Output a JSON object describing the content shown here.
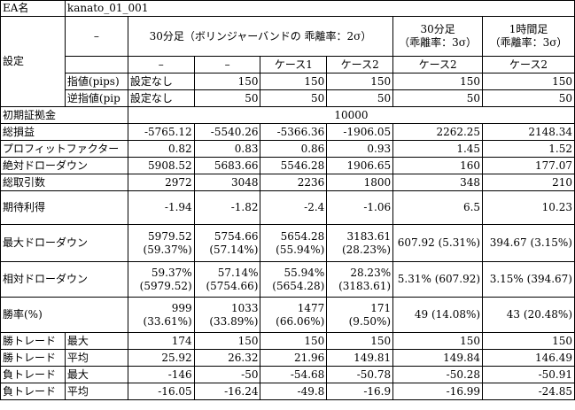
{
  "ea_label": "EA名",
  "ea_name": "kanato_01_001",
  "settings": {
    "label": "設定",
    "dash": "–",
    "col_group1": "30分足（ボリンジャーバンドの 乖離率：2σ）",
    "col_group2": [
      "30分足",
      "（乖離率：3σ）"
    ],
    "col_group3": [
      "1時間足",
      "（乖離率：3σ）"
    ],
    "sub": [
      "–",
      "–",
      "ケース1",
      "ケース2",
      "ケース2",
      "ケース2"
    ],
    "limit_label": "指値(pips)",
    "limit": [
      "設定なし",
      "150",
      "150",
      "150",
      "150",
      "150"
    ],
    "stop_label": "逆指値(pip",
    "stop": [
      "設定なし",
      "50",
      "50",
      "50",
      "50",
      "50"
    ]
  },
  "initial_margin": {
    "label": "初期証拠金",
    "value": "10000"
  },
  "rows": {
    "total_profit": {
      "label": "総損益",
      "values": [
        "-5765.12",
        "-5540.26",
        "-5366.36",
        "-1906.05",
        "2262.25",
        "2148.34"
      ]
    },
    "profit_factor": {
      "label": "プロフィットファクター",
      "values": [
        "0.82",
        "0.83",
        "0.86",
        "0.93",
        "1.45",
        "1.52"
      ]
    },
    "abs_drawdown": {
      "label": "絶対ドローダウン",
      "values": [
        "5908.52",
        "5683.66",
        "5546.28",
        "1906.65",
        "160",
        "177.07"
      ]
    },
    "total_trades": {
      "label": "総取引数",
      "values": [
        "2972",
        "3048",
        "2236",
        "1800",
        "348",
        "210"
      ]
    },
    "expected_payoff": {
      "label": "期待利得",
      "values": [
        "-1.94",
        "-1.82",
        "-2.4",
        "-1.06",
        "6.5",
        "10.23"
      ]
    },
    "max_drawdown": {
      "label": "最大ドローダウン",
      "line1": [
        "5979.52",
        "5754.66",
        "5654.28",
        "3183.61"
      ],
      "line2": [
        "(59.37%)",
        "(57.14%)",
        "(55.94%)",
        "(28.23%)"
      ],
      "single": [
        "607.92 (5.31%)",
        "394.67 (3.15%)"
      ]
    },
    "rel_drawdown": {
      "label": "相対ドローダウン",
      "line1": [
        "59.37%",
        "57.14%",
        "55.94%",
        "28.23%"
      ],
      "line2": [
        "(5979.52)",
        "(5754.66)",
        "(5654.28)",
        "(3183.61)"
      ],
      "single": [
        "5.31% (607.92)",
        "3.15% (394.67)"
      ]
    },
    "win_rate": {
      "label": "勝率(%)",
      "line1": [
        "999",
        "1033",
        "1477",
        "171"
      ],
      "line2": [
        "(33.61%)",
        "(33.89%)",
        "(66.06%)",
        "(9.50%)"
      ],
      "single": [
        "49 (14.08%)",
        "43 (20.48%)"
      ]
    },
    "win_max": {
      "label": "勝トレード",
      "sub": "最大",
      "values": [
        "174",
        "150",
        "150",
        "150",
        "150",
        "150"
      ]
    },
    "win_avg": {
      "label": "勝トレード",
      "sub": "平均",
      "values": [
        "25.92",
        "26.32",
        "21.96",
        "149.81",
        "149.84",
        "146.49"
      ]
    },
    "loss_max": {
      "label": "負トレード",
      "sub": "最大",
      "values": [
        "-146",
        "-50",
        "-54.68",
        "-50.78",
        "-50.28",
        "-50.91"
      ]
    },
    "loss_avg": {
      "label": "負トレード",
      "sub": "平均",
      "values": [
        "-16.05",
        "-16.24",
        "-49.8",
        "-16.9",
        "-16.99",
        "-24.85"
      ]
    }
  }
}
